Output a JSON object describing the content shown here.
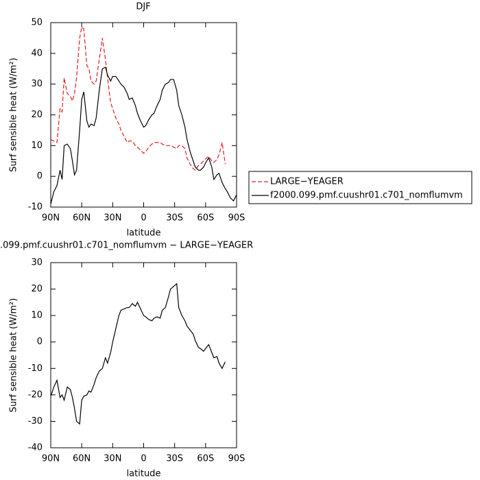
{
  "chart_data": [
    {
      "type": "line",
      "title": "DJF",
      "xlabel": "latitude",
      "ylabel": "Surf sensible heat (W/m²)",
      "x": [
        90,
        87,
        84,
        81,
        79,
        77,
        74,
        71,
        69,
        67,
        65,
        62,
        60,
        58,
        55,
        53,
        51,
        48,
        46,
        43,
        40,
        37,
        35,
        32,
        30,
        27,
        24,
        22,
        19,
        16,
        14,
        11,
        8,
        6,
        3,
        0,
        -2,
        -5,
        -8,
        -10,
        -13,
        -16,
        -18,
        -21,
        -24,
        -26,
        -29,
        -32,
        -34,
        -37,
        -40,
        -42,
        -45,
        -48,
        -50,
        -53,
        -55,
        -58,
        -61,
        -63,
        -66,
        -68,
        -71,
        -73,
        -76,
        -79,
        -81,
        -84,
        -87,
        -90
      ],
      "series": [
        {
          "name": "LARGE−YEAGER",
          "color": "#e31a1c",
          "dashed": true,
          "values": [
            12,
            11.5,
            11,
            22,
            21,
            32,
            27,
            26,
            24.5,
            27,
            32,
            45,
            48.5,
            48,
            36,
            35,
            31,
            30,
            31,
            38,
            45,
            38,
            32,
            24,
            22,
            19,
            17,
            15,
            13,
            11,
            11.5,
            11.5,
            10,
            9.5,
            8.5,
            7.5,
            8,
            9.5,
            10.5,
            11,
            11,
            11,
            10.5,
            10,
            10,
            10,
            9.5,
            9,
            10,
            10,
            9,
            6,
            4,
            2.5,
            2,
            3.5,
            4,
            5,
            6,
            6.5,
            5,
            4.5,
            5.5,
            7,
            11,
            4,
            null,
            null,
            null,
            null
          ]
        },
        {
          "name": "f2000.099.pmf.cuushr01.c701_nomflumvm",
          "color": "#000000",
          "dashed": false,
          "values": [
            -9,
            -5,
            -3,
            2,
            -1,
            10,
            10.5,
            9,
            5,
            0.5,
            2,
            15,
            25,
            27.5,
            18,
            16,
            17,
            16.5,
            19,
            28,
            35,
            35.5,
            33,
            31,
            32.5,
            32.5,
            31,
            30,
            29,
            27,
            25,
            25.5,
            23,
            20.5,
            18,
            16,
            16.5,
            18.5,
            20,
            20.5,
            23,
            25,
            28,
            30,
            30.5,
            31.5,
            31.5,
            28,
            23,
            20,
            16,
            12,
            8,
            5,
            3,
            2,
            2,
            3,
            5,
            6,
            3,
            -1,
            0.5,
            1,
            -2,
            -4,
            -5,
            -7,
            -8,
            -6
          ]
        }
      ],
      "xlim": [
        90,
        -90
      ],
      "xticks": [
        {
          "value": 90,
          "label": "90N"
        },
        {
          "value": 60,
          "label": "60N"
        },
        {
          "value": 30,
          "label": "30N"
        },
        0,
        {
          "value": -30,
          "label": "30S"
        },
        {
          "value": -60,
          "label": "60S"
        },
        {
          "value": -90,
          "label": "90S"
        }
      ],
      "ylim": [
        -10,
        50
      ],
      "yticks": [
        -10,
        0,
        10,
        20,
        30,
        40,
        50
      ],
      "legend": "right"
    },
    {
      "type": "line",
      "title": ".099.pmf.cuushr01.c701_nomflumvm − LARGE−YEAGER",
      "xlabel": "latitude",
      "ylabel": "Surf sensible heat (W/m²)",
      "x": [
        90,
        87,
        84,
        81,
        79,
        77,
        74,
        71,
        69,
        67,
        65,
        62,
        60,
        58,
        55,
        53,
        51,
        48,
        46,
        43,
        40,
        37,
        35,
        32,
        30,
        27,
        24,
        22,
        19,
        16,
        14,
        11,
        8,
        6,
        3,
        0,
        -2,
        -5,
        -8,
        -10,
        -13,
        -16,
        -18,
        -21,
        -24,
        -26,
        -29,
        -32,
        -34,
        -37,
        -40,
        -42,
        -45,
        -48,
        -50,
        -53,
        -55,
        -58,
        -61,
        -63,
        -66,
        -68,
        -71,
        -73,
        -76,
        -79,
        -81,
        -84,
        -87,
        -90
      ],
      "series": [
        {
          "color": "#000000",
          "dashed": false,
          "values": [
            -20.5,
            -17,
            -14.5,
            -21,
            -20,
            -22,
            -17,
            -18,
            -21,
            -25,
            -30,
            -31,
            -22,
            -20.5,
            -20,
            -18.5,
            -19,
            -16,
            -13.5,
            -11,
            -10,
            -6,
            -8,
            -4,
            0,
            5,
            10,
            12,
            12.5,
            13,
            13,
            14.5,
            13.5,
            15,
            12.5,
            10,
            9.5,
            8.5,
            8,
            9,
            9.5,
            9,
            12,
            13,
            17,
            20,
            21,
            22,
            13,
            10,
            8,
            6,
            4.5,
            3,
            0.5,
            -2,
            -2.5,
            -3.5,
            -2,
            -1,
            -4,
            -6,
            -5.5,
            -8,
            -10,
            -7.5,
            null,
            null,
            null,
            null
          ]
        }
      ],
      "xlim": [
        90,
        -90
      ],
      "xticks": [
        {
          "value": 90,
          "label": "90N"
        },
        {
          "value": 60,
          "label": "60N"
        },
        {
          "value": 30,
          "label": "30N"
        },
        0,
        {
          "value": -30,
          "label": "30S"
        },
        {
          "value": -60,
          "label": "60S"
        },
        {
          "value": -90,
          "label": "90S"
        }
      ],
      "ylim": [
        -40,
        30
      ],
      "yticks": [
        -40,
        -30,
        -20,
        -10,
        0,
        10,
        20,
        30
      ]
    }
  ]
}
